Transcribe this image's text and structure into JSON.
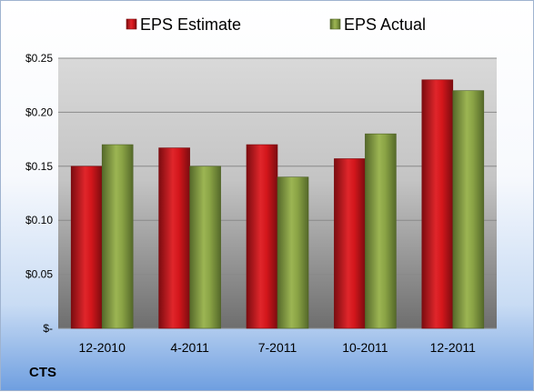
{
  "ticker": "CTS",
  "chart_data": {
    "type": "bar",
    "title": "",
    "xlabel": "",
    "ylabel": "",
    "categories": [
      "12-2010",
      "4-2011",
      "7-2011",
      "10-2011",
      "12-2011"
    ],
    "series": [
      {
        "name": "EPS Estimate",
        "color": "#c0171c",
        "values": [
          0.15,
          0.167,
          0.17,
          0.157,
          0.23
        ]
      },
      {
        "name": "EPS Actual",
        "color": "#7f9a3a",
        "values": [
          0.17,
          0.15,
          0.14,
          0.18,
          0.22
        ]
      }
    ],
    "ylim": [
      0,
      0.25
    ],
    "yticks": [
      0,
      0.05,
      0.1,
      0.15,
      0.2,
      0.25
    ],
    "ytick_labels": [
      "$-",
      "$0.05",
      "$0.10",
      "$0.15",
      "$0.20",
      "$0.25"
    ],
    "grid": true,
    "legend_position": "top"
  }
}
